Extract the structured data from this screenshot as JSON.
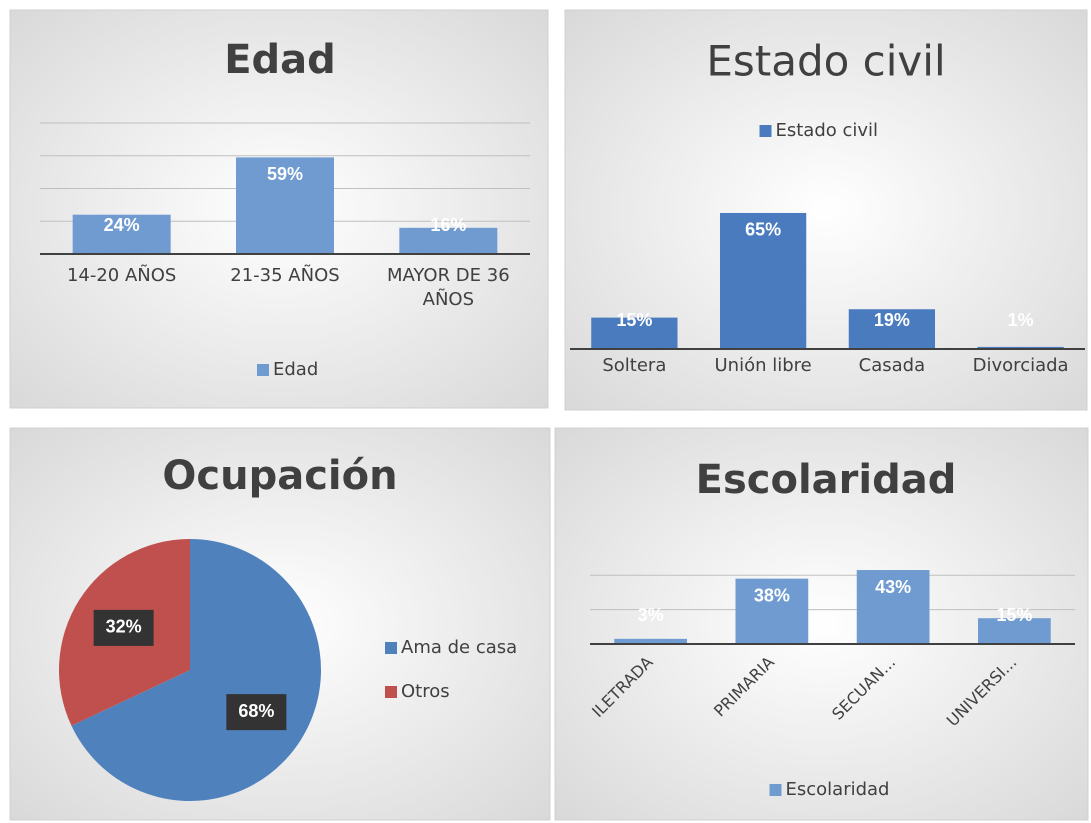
{
  "chart_data": [
    {
      "type": "bar",
      "title": "Edad",
      "categories": [
        "14-20 AÑOS",
        "21-35 AÑOS",
        "MAYOR DE 36 AÑOS"
      ],
      "series": [
        {
          "name": "Edad",
          "color": "#6f9bd1",
          "values": [
            24,
            59,
            16
          ],
          "value_labels": [
            "24%",
            "59%",
            "16%"
          ]
        }
      ],
      "ylim": [
        0,
        80
      ],
      "yticks": [
        0,
        20,
        40,
        60,
        80
      ],
      "grid": true,
      "legend": "bottom"
    },
    {
      "type": "bar",
      "title": "Estado civil",
      "categories": [
        "Soltera",
        "Unión libre",
        "Casada",
        "Divorciada"
      ],
      "series": [
        {
          "name": "Estado civil",
          "color": "#4a7bbf",
          "values": [
            15,
            65,
            19,
            1
          ],
          "value_labels": [
            "15%",
            "65%",
            "19%",
            "1%"
          ]
        }
      ],
      "ylim": [
        0,
        70
      ],
      "grid": false,
      "legend": "top"
    },
    {
      "type": "pie",
      "title": "Ocupación",
      "categories": [
        "Ama de casa",
        "Otros"
      ],
      "values": [
        68,
        32
      ],
      "value_labels": [
        "68%",
        "32%"
      ],
      "colors": [
        "#4f81bd",
        "#c0504d"
      ],
      "legend": "right"
    },
    {
      "type": "bar",
      "title": "Escolaridad",
      "categories": [
        "ILETRADA",
        "PRIMARIA",
        "SECUAN...",
        "UNIVERSI..."
      ],
      "series": [
        {
          "name": "Escolaridad",
          "color": "#6f9bd1",
          "values": [
            3,
            38,
            43,
            15
          ],
          "value_labels": [
            "3%",
            "38%",
            "43%",
            "15%"
          ]
        }
      ],
      "ylim": [
        0,
        50
      ],
      "yticks": [
        0,
        20,
        40
      ],
      "grid": true,
      "legend": "bottom",
      "rotate_labels": true
    }
  ]
}
